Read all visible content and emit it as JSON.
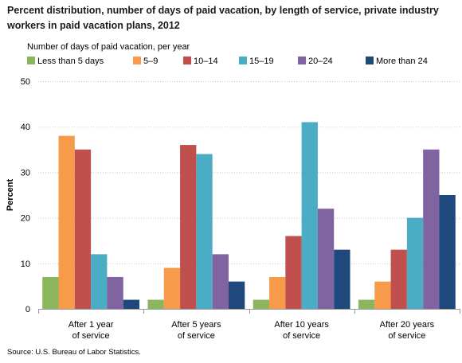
{
  "title": "Percent distribution, number of days of paid vacation, by length of service, private industry workers in paid vacation plans,  2012",
  "legend_title": "Number of days of paid vacation, per year",
  "source": "Source: U.S. Bureau of Labor Statistics.",
  "chart_data": {
    "type": "bar",
    "categories": [
      "After 1 year of service",
      "After 5 years of service",
      "After 10 years of service",
      "After 20 years of service"
    ],
    "category_lines": [
      [
        "After 1 year",
        "of service"
      ],
      [
        "After 5 years",
        "of service"
      ],
      [
        "After 10 years",
        "of service"
      ],
      [
        "After 20 years",
        "of service"
      ]
    ],
    "series": [
      {
        "name": "Less than 5 days",
        "color": "#8cb65b",
        "values": [
          7,
          2,
          2,
          2
        ]
      },
      {
        "name": "5–9",
        "color": "#f79a49",
        "values": [
          38,
          9,
          7,
          6
        ]
      },
      {
        "name": "10–14",
        "color": "#c0504d",
        "values": [
          35,
          36,
          16,
          13
        ]
      },
      {
        "name": "15–19",
        "color": "#4bacc6",
        "values": [
          12,
          34,
          41,
          20
        ]
      },
      {
        "name": "20–24",
        "color": "#8064a2",
        "values": [
          7,
          12,
          22,
          35
        ]
      },
      {
        "name": "More than 24",
        "color": "#1f497d",
        "values": [
          2,
          6,
          13,
          25
        ]
      }
    ],
    "ylabel": "Percent",
    "xlabel": "",
    "ylim": [
      0,
      50
    ],
    "yticks": [
      0,
      10,
      20,
      30,
      40,
      50
    ],
    "grid": true,
    "legend_position": "top"
  }
}
